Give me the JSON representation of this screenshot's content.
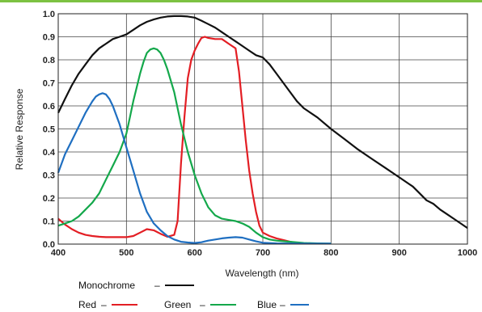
{
  "accent_bar_color": "#7dc242",
  "chart_data": {
    "type": "line",
    "title": "",
    "xlabel": "Wavelength (nm)",
    "ylabel": "Relative Response",
    "xlim": [
      400,
      1000
    ],
    "ylim": [
      0.0,
      1.0
    ],
    "grid": true,
    "x_ticks": [
      400,
      500,
      600,
      700,
      800,
      900,
      1000
    ],
    "x_tick_labels": [
      "400",
      "500",
      "600",
      "700",
      "800",
      "900",
      "1000"
    ],
    "y_ticks": [
      0.0,
      0.1,
      0.2,
      0.3,
      0.4,
      0.5,
      0.6,
      0.7,
      0.8,
      0.9,
      1.0
    ],
    "y_tick_labels": [
      "0.0",
      "0.1",
      "0.2",
      "0.3",
      "0.4",
      "0.5",
      "0.6",
      "0.7",
      "0.8",
      "0.9",
      "1.0"
    ],
    "legend_placement": "bottom-left",
    "series": [
      {
        "name": "Monochrome",
        "color": "#111111",
        "points": [
          [
            400,
            0.57
          ],
          [
            410,
            0.63
          ],
          [
            420,
            0.69
          ],
          [
            430,
            0.74
          ],
          [
            440,
            0.78
          ],
          [
            450,
            0.82
          ],
          [
            460,
            0.85
          ],
          [
            470,
            0.87
          ],
          [
            480,
            0.89
          ],
          [
            490,
            0.9
          ],
          [
            500,
            0.91
          ],
          [
            510,
            0.93
          ],
          [
            520,
            0.95
          ],
          [
            530,
            0.965
          ],
          [
            540,
            0.975
          ],
          [
            550,
            0.983
          ],
          [
            560,
            0.988
          ],
          [
            570,
            0.99
          ],
          [
            580,
            0.99
          ],
          [
            590,
            0.988
          ],
          [
            600,
            0.983
          ],
          [
            610,
            0.97
          ],
          [
            620,
            0.955
          ],
          [
            630,
            0.94
          ],
          [
            640,
            0.92
          ],
          [
            650,
            0.9
          ],
          [
            660,
            0.88
          ],
          [
            670,
            0.86
          ],
          [
            680,
            0.84
          ],
          [
            690,
            0.82
          ],
          [
            700,
            0.81
          ],
          [
            710,
            0.78
          ],
          [
            720,
            0.74
          ],
          [
            730,
            0.7
          ],
          [
            740,
            0.66
          ],
          [
            750,
            0.62
          ],
          [
            760,
            0.59
          ],
          [
            780,
            0.55
          ],
          [
            800,
            0.5
          ],
          [
            820,
            0.455
          ],
          [
            840,
            0.41
          ],
          [
            860,
            0.37
          ],
          [
            880,
            0.33
          ],
          [
            900,
            0.29
          ],
          [
            920,
            0.25
          ],
          [
            930,
            0.22
          ],
          [
            940,
            0.19
          ],
          [
            950,
            0.175
          ],
          [
            960,
            0.15
          ],
          [
            970,
            0.13
          ],
          [
            980,
            0.11
          ],
          [
            990,
            0.09
          ],
          [
            1000,
            0.07
          ]
        ]
      },
      {
        "name": "Red",
        "color": "#e31e24",
        "points": [
          [
            400,
            0.11
          ],
          [
            410,
            0.085
          ],
          [
            420,
            0.065
          ],
          [
            430,
            0.05
          ],
          [
            440,
            0.04
          ],
          [
            450,
            0.035
          ],
          [
            460,
            0.032
          ],
          [
            470,
            0.03
          ],
          [
            480,
            0.03
          ],
          [
            490,
            0.03
          ],
          [
            500,
            0.03
          ],
          [
            510,
            0.035
          ],
          [
            520,
            0.05
          ],
          [
            530,
            0.065
          ],
          [
            540,
            0.06
          ],
          [
            550,
            0.045
          ],
          [
            560,
            0.032
          ],
          [
            570,
            0.04
          ],
          [
            575,
            0.1
          ],
          [
            580,
            0.35
          ],
          [
            585,
            0.55
          ],
          [
            590,
            0.72
          ],
          [
            595,
            0.8
          ],
          [
            600,
            0.84
          ],
          [
            605,
            0.87
          ],
          [
            610,
            0.895
          ],
          [
            615,
            0.9
          ],
          [
            620,
            0.895
          ],
          [
            630,
            0.89
          ],
          [
            640,
            0.89
          ],
          [
            650,
            0.87
          ],
          [
            660,
            0.85
          ],
          [
            665,
            0.75
          ],
          [
            670,
            0.6
          ],
          [
            675,
            0.45
          ],
          [
            680,
            0.32
          ],
          [
            685,
            0.22
          ],
          [
            690,
            0.14
          ],
          [
            695,
            0.08
          ],
          [
            700,
            0.05
          ],
          [
            710,
            0.035
          ],
          [
            720,
            0.025
          ],
          [
            730,
            0.018
          ],
          [
            740,
            0.01
          ],
          [
            750,
            0.005
          ]
        ]
      },
      {
        "name": "Green",
        "color": "#14a84b",
        "points": [
          [
            400,
            0.08
          ],
          [
            410,
            0.09
          ],
          [
            420,
            0.1
          ],
          [
            430,
            0.12
          ],
          [
            440,
            0.15
          ],
          [
            450,
            0.18
          ],
          [
            460,
            0.22
          ],
          [
            470,
            0.28
          ],
          [
            480,
            0.34
          ],
          [
            490,
            0.4
          ],
          [
            500,
            0.48
          ],
          [
            505,
            0.55
          ],
          [
            510,
            0.62
          ],
          [
            515,
            0.68
          ],
          [
            520,
            0.74
          ],
          [
            525,
            0.79
          ],
          [
            530,
            0.83
          ],
          [
            535,
            0.845
          ],
          [
            540,
            0.85
          ],
          [
            545,
            0.845
          ],
          [
            550,
            0.83
          ],
          [
            555,
            0.8
          ],
          [
            560,
            0.76
          ],
          [
            570,
            0.66
          ],
          [
            580,
            0.52
          ],
          [
            590,
            0.4
          ],
          [
            600,
            0.3
          ],
          [
            610,
            0.22
          ],
          [
            620,
            0.16
          ],
          [
            630,
            0.125
          ],
          [
            640,
            0.11
          ],
          [
            650,
            0.105
          ],
          [
            660,
            0.1
          ],
          [
            670,
            0.09
          ],
          [
            680,
            0.075
          ],
          [
            690,
            0.05
          ],
          [
            700,
            0.03
          ],
          [
            710,
            0.02
          ],
          [
            720,
            0.015
          ],
          [
            740,
            0.01
          ],
          [
            760,
            0.005
          ],
          [
            780,
            0.003
          ],
          [
            800,
            0.002
          ]
        ]
      },
      {
        "name": "Blue",
        "color": "#1f6fc1",
        "points": [
          [
            400,
            0.31
          ],
          [
            410,
            0.39
          ],
          [
            420,
            0.45
          ],
          [
            430,
            0.51
          ],
          [
            440,
            0.57
          ],
          [
            450,
            0.62
          ],
          [
            455,
            0.64
          ],
          [
            460,
            0.65
          ],
          [
            465,
            0.655
          ],
          [
            470,
            0.65
          ],
          [
            475,
            0.63
          ],
          [
            480,
            0.6
          ],
          [
            490,
            0.52
          ],
          [
            500,
            0.42
          ],
          [
            510,
            0.32
          ],
          [
            520,
            0.22
          ],
          [
            530,
            0.14
          ],
          [
            540,
            0.09
          ],
          [
            550,
            0.06
          ],
          [
            560,
            0.035
          ],
          [
            570,
            0.02
          ],
          [
            580,
            0.01
          ],
          [
            590,
            0.007
          ],
          [
            600,
            0.005
          ],
          [
            610,
            0.008
          ],
          [
            620,
            0.015
          ],
          [
            630,
            0.02
          ],
          [
            640,
            0.025
          ],
          [
            650,
            0.028
          ],
          [
            660,
            0.03
          ],
          [
            670,
            0.028
          ],
          [
            680,
            0.02
          ],
          [
            690,
            0.012
          ],
          [
            700,
            0.006
          ],
          [
            720,
            0.003
          ],
          [
            750,
            0.002
          ],
          [
            800,
            0.002
          ]
        ]
      }
    ]
  },
  "legend": {
    "monochrome": {
      "label": "Monochrome",
      "dash": "–"
    },
    "red": {
      "label": "Red",
      "dash": "–"
    },
    "green": {
      "label": "Green",
      "dash": "–"
    },
    "blue": {
      "label": "Blue",
      "dash": "–"
    }
  }
}
